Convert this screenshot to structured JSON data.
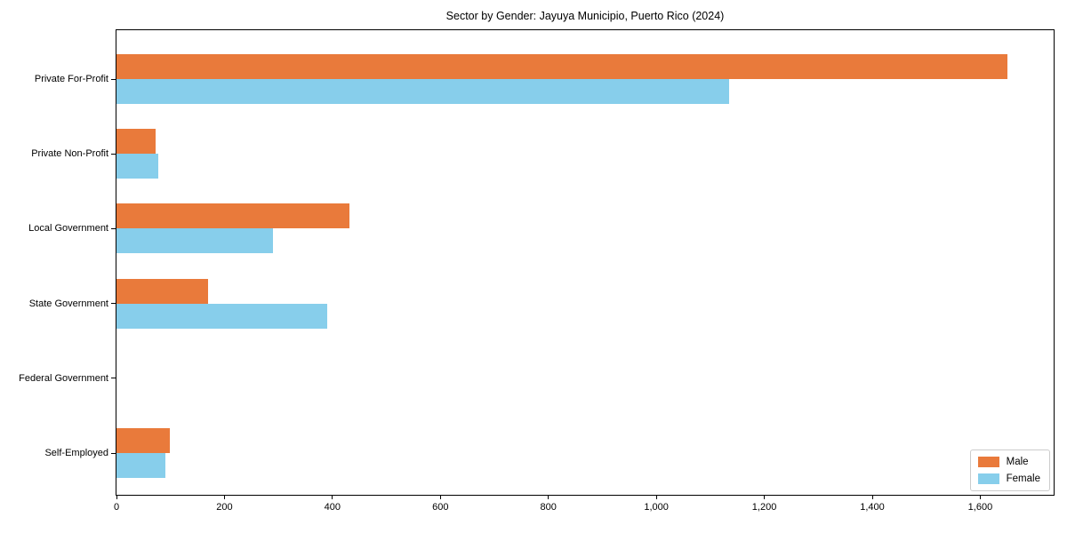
{
  "title": "Sector by Gender: Jayuya Municipio, Puerto Rico (2024)",
  "colors": {
    "male": "#e97a3b",
    "female": "#87ceeb",
    "axis": "#000000",
    "legend_border": "#cccccc",
    "background": "#ffffff"
  },
  "chart_data": {
    "type": "bar",
    "orientation": "horizontal",
    "title": "Sector by Gender: Jayuya Municipio, Puerto Rico (2024)",
    "categories": [
      "Private For-Profit",
      "Private Non-Profit",
      "Local Government",
      "State Government",
      "Federal Government",
      "Self-Employed"
    ],
    "series": [
      {
        "name": "Male",
        "color": "#e97a3b",
        "values": [
          1650,
          72,
          432,
          170,
          0,
          98
        ]
      },
      {
        "name": "Female",
        "color": "#87ceeb",
        "values": [
          1135,
          77,
          290,
          391,
          0,
          90
        ]
      }
    ],
    "xlabel": "",
    "ylabel": "",
    "xlim": [
      0,
      1736
    ],
    "xticks": [
      0,
      200,
      400,
      600,
      800,
      1000,
      1200,
      1400,
      1600
    ],
    "xtick_labels": [
      "0",
      "200",
      "400",
      "600",
      "800",
      "1,000",
      "1,200",
      "1,400",
      "1,600"
    ],
    "grid": false,
    "legend_position": "lower right"
  }
}
